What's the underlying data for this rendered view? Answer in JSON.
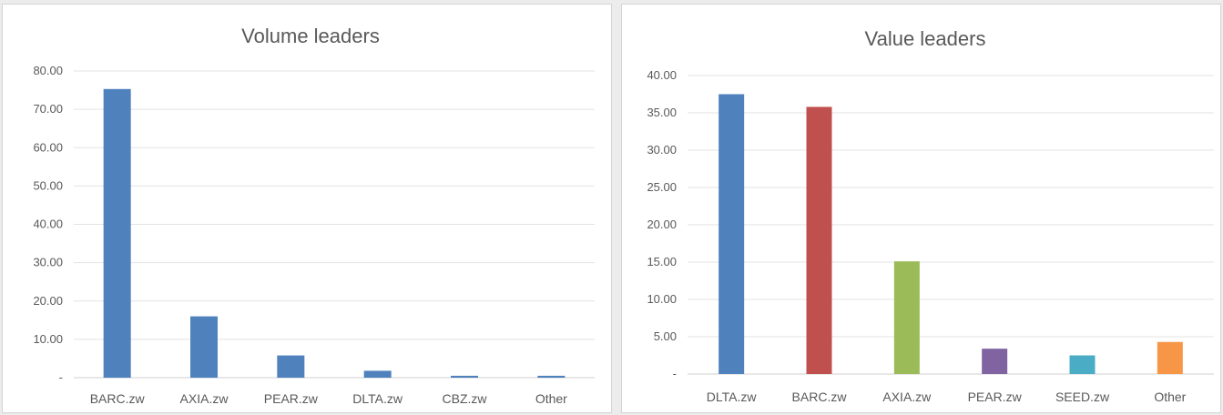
{
  "chart_data": [
    {
      "type": "bar",
      "title": "Volume leaders",
      "categories": [
        "BARC.zw",
        "AXIA.zw",
        "PEAR.zw",
        "DLTA.zw",
        "CBZ.zw",
        "Other"
      ],
      "values": [
        75.3,
        16.0,
        5.8,
        1.8,
        0.5,
        0.5
      ],
      "ylim": [
        0,
        80
      ],
      "yticks": [
        "-",
        "10.00",
        "20.00",
        "30.00",
        "40.00",
        "50.00",
        "60.00",
        "70.00",
        "80.00"
      ],
      "grid": true,
      "colors": [
        "#4f81bd",
        "#4f81bd",
        "#4f81bd",
        "#4f81bd",
        "#4f81bd",
        "#4f81bd"
      ]
    },
    {
      "type": "bar",
      "title": "Value leaders",
      "categories": [
        "DLTA.zw",
        "BARC.zw",
        "AXIA.zw",
        "PEAR.zw",
        "SEED.zw",
        "Other"
      ],
      "values": [
        37.5,
        35.8,
        15.1,
        3.4,
        2.5,
        4.3
      ],
      "ylim": [
        0,
        40
      ],
      "yticks": [
        "-",
        "5.00",
        "10.00",
        "15.00",
        "20.00",
        "25.00",
        "30.00",
        "35.00",
        "40.00"
      ],
      "grid": true,
      "colors": [
        "#4f81bd",
        "#c0504d",
        "#9bbb59",
        "#8064a2",
        "#4bacc6",
        "#f79646"
      ]
    }
  ]
}
